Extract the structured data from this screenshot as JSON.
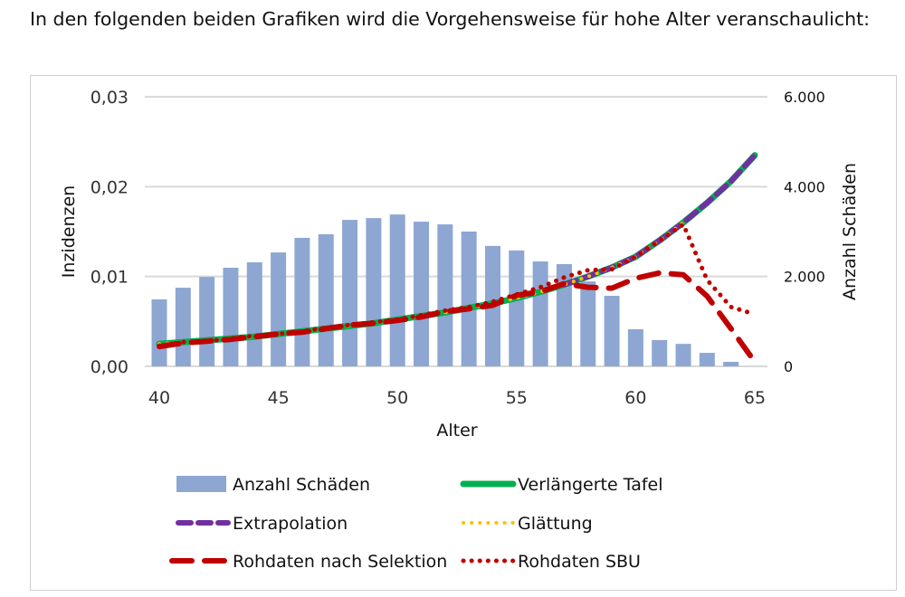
{
  "intro_text": "In den folgenden beiden Grafiken wird die Vorgehensweise für hohe Alter veranschaulicht:",
  "chart_data": {
    "type": "bar+line",
    "xlabel": "Alter",
    "ylabel": "Inzidenzen",
    "y2label": "Anzahl Schäden",
    "xlim": [
      40,
      65
    ],
    "ylim": [
      0,
      0.03
    ],
    "y2lim": [
      0,
      6000
    ],
    "x_ticks": [
      "40",
      "45",
      "50",
      "55",
      "60",
      "65"
    ],
    "y_ticks": [
      "0,00",
      "0,01",
      "0,02",
      "0,03"
    ],
    "y2_ticks": [
      "0",
      "2.000",
      "4.000",
      "6.000"
    ],
    "grid": true,
    "legend_position": "bottom",
    "ages": [
      40,
      41,
      42,
      43,
      44,
      45,
      46,
      47,
      48,
      49,
      50,
      51,
      52,
      53,
      54,
      55,
      56,
      57,
      58,
      59,
      60,
      61,
      62,
      63,
      64,
      65
    ],
    "series": [
      {
        "name": "Anzahl Schäden",
        "type": "bar",
        "axis": "right",
        "color": "#8EA6D2",
        "values": [
          1490,
          1750,
          1990,
          2195,
          2315,
          2535,
          2860,
          2940,
          3260,
          3300,
          3380,
          3220,
          3160,
          3000,
          2680,
          2580,
          2335,
          2275,
          1890,
          1570,
          825,
          585,
          500,
          300,
          100,
          null
        ]
      },
      {
        "name": "Verlängerte Tafel",
        "type": "line",
        "style": "solid",
        "color": "#00B050",
        "values": [
          0.0025,
          0.0027,
          0.0029,
          0.0031,
          0.0033,
          0.0036,
          0.0039,
          0.0042,
          0.0045,
          0.0048,
          0.0052,
          0.0056,
          0.006,
          0.0065,
          0.007,
          0.0076,
          0.0083,
          0.0091,
          0.01,
          0.011,
          0.0122,
          0.014,
          0.016,
          0.0182,
          0.0206,
          0.0235
        ]
      },
      {
        "name": "Extrapolation",
        "type": "line",
        "style": "dash",
        "color": "#7030A0",
        "values": [
          null,
          null,
          null,
          null,
          null,
          null,
          null,
          null,
          null,
          null,
          null,
          null,
          null,
          null,
          null,
          null,
          null,
          0.0091,
          0.01,
          0.011,
          0.0122,
          0.014,
          0.016,
          0.0182,
          0.0206,
          0.0235
        ]
      },
      {
        "name": "Glättung",
        "type": "line",
        "style": "dot",
        "color": "#FFC000",
        "values": [
          0.0025,
          0.0027,
          0.0029,
          0.0031,
          0.0033,
          0.0036,
          0.0039,
          0.0042,
          0.0045,
          0.0048,
          0.0052,
          0.0056,
          0.006,
          0.0065,
          0.007,
          0.0076,
          0.0083,
          0.0091,
          0.01,
          0.011,
          0.0122,
          0.014,
          0.016,
          null,
          null,
          null
        ]
      },
      {
        "name": "Rohdaten nach Selektion",
        "type": "line",
        "style": "longdash",
        "color": "#C00000",
        "values": [
          0.0022,
          0.0026,
          0.0028,
          0.003,
          0.0033,
          0.0036,
          0.0038,
          0.0042,
          0.0046,
          0.0048,
          0.0051,
          0.0055,
          0.0061,
          0.0064,
          0.0068,
          0.0079,
          0.0083,
          0.0092,
          0.0088,
          0.0087,
          0.0098,
          0.0104,
          0.0102,
          0.0078,
          0.0042,
          0.0005
        ]
      },
      {
        "name": "Rohdaten SBU",
        "type": "line",
        "style": "dot",
        "color": "#C00000",
        "values": [
          0.0023,
          0.0027,
          0.0028,
          0.0031,
          0.0034,
          0.0036,
          0.0039,
          0.0043,
          0.0046,
          0.0049,
          0.0052,
          0.0057,
          0.0062,
          0.0066,
          0.0072,
          0.008,
          0.0088,
          0.0099,
          0.0107,
          0.0108,
          0.0122,
          0.014,
          0.0158,
          0.0096,
          0.0066,
          0.0058
        ]
      }
    ]
  }
}
